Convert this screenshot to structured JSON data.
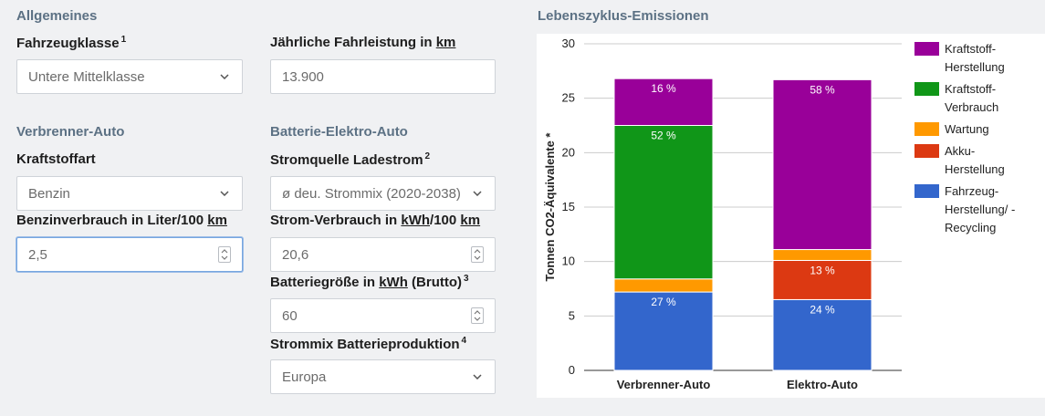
{
  "form": {
    "general": {
      "heading": "Allgemeines",
      "vehicle_class": {
        "label": "Fahrzeugklasse",
        "footnote": "1",
        "value": "Untere Mittelklasse"
      },
      "mileage": {
        "label_pre": "Jährliche Fahrleistung in ",
        "label_unit": "km",
        "value": "13.900"
      }
    },
    "combustion": {
      "heading": "Verbrenner-Auto",
      "fuel_type": {
        "label": "Kraftstoffart",
        "value": "Benzin"
      },
      "consumption": {
        "label_pre": "Benzinverbrauch in Liter/100 ",
        "label_unit": "km",
        "value": "2,5"
      }
    },
    "electric": {
      "heading": "Batterie-Elektro-Auto",
      "power_source": {
        "label": "Stromquelle Ladestrom",
        "footnote": "2",
        "value": "ø deu. Strommix (2020-2038)"
      },
      "consumption": {
        "label_pre": "Strom-Verbrauch in ",
        "label_unit1": "kWh",
        "label_mid": "/100 ",
        "label_unit2": "km",
        "value": "20,6"
      },
      "battery_size": {
        "label_pre": "Batteriegröße in ",
        "label_unit": "kWh",
        "label_post": " (Brutto)",
        "footnote": "3",
        "value": "60"
      },
      "battery_mix": {
        "label": "Strommix Batterieproduktion",
        "footnote": "4",
        "value": "Europa"
      }
    }
  },
  "chart_section": {
    "heading": "Lebenszyklus-Emissionen"
  },
  "chart_data": {
    "type": "bar",
    "stacked": true,
    "ylabel": "Tonnen CO2-Äquivalente *",
    "ylim": [
      0,
      30
    ],
    "yticks": [
      0,
      5,
      10,
      15,
      20,
      25,
      30
    ],
    "grid": true,
    "legend_position": "right",
    "categories": [
      "Verbrenner-Auto",
      "Elektro-Auto"
    ],
    "series": [
      {
        "name": "Fahrzeug-Herstellung/ -Recycling",
        "color": "#3366cc",
        "values": [
          7.2,
          6.5
        ],
        "labels": [
          "27 %",
          "24 %"
        ]
      },
      {
        "name": "Akku-Herstellung",
        "color": "#dc3912",
        "values": [
          0,
          3.6
        ],
        "labels": [
          "",
          "13 %"
        ]
      },
      {
        "name": "Wartung",
        "color": "#ff9900",
        "values": [
          1.2,
          1.0
        ],
        "labels": [
          "",
          ""
        ]
      },
      {
        "name": "Kraftstoff-Verbrauch",
        "color": "#109618",
        "values": [
          14.1,
          0
        ],
        "labels": [
          "52 %",
          ""
        ]
      },
      {
        "name": "Kraftstoff-Herstellung",
        "color": "#990099",
        "values": [
          4.3,
          15.6
        ],
        "labels": [
          "16 %",
          "58 %"
        ]
      }
    ],
    "legend_order": [
      {
        "lines": [
          "Kraftstoff-",
          "Herstellung"
        ],
        "color": "#990099"
      },
      {
        "lines": [
          "Kraftstoff-",
          "Verbrauch"
        ],
        "color": "#109618"
      },
      {
        "lines": [
          "Wartung"
        ],
        "color": "#ff9900"
      },
      {
        "lines": [
          "Akku-",
          "Herstellung"
        ],
        "color": "#dc3912"
      },
      {
        "lines": [
          "Fahrzeug-",
          "Herstellung/ -",
          "Recycling"
        ],
        "color": "#3366cc"
      }
    ]
  },
  "icons": {
    "select": "chevron-down-icon",
    "spinner": "spinner-icon"
  }
}
